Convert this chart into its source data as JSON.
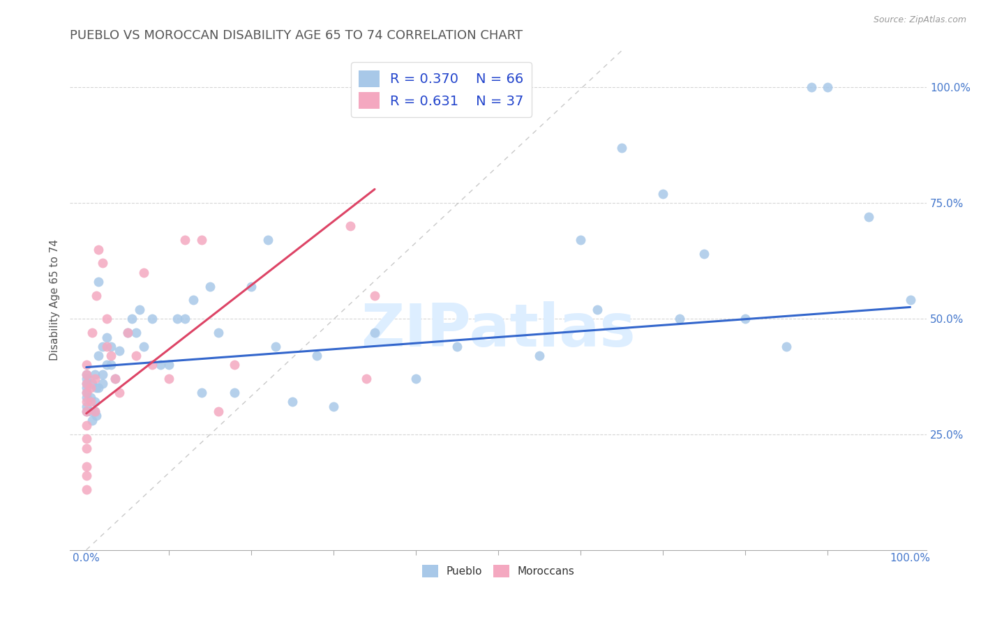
{
  "title": "PUEBLO VS MOROCCAN DISABILITY AGE 65 TO 74 CORRELATION CHART",
  "source_text": "Source: ZipAtlas.com",
  "ylabel": "Disability Age 65 to 74",
  "xlim": [
    -0.02,
    1.02
  ],
  "ylim": [
    0.0,
    1.08
  ],
  "x_tick_minor_positions": [
    0.1,
    0.2,
    0.3,
    0.4,
    0.5,
    0.6,
    0.7,
    0.8,
    0.9
  ],
  "x_tick_major_positions": [
    0.0,
    1.0
  ],
  "x_tick_major_labels": [
    "0.0%",
    "100.0%"
  ],
  "y_tick_positions": [
    0.25,
    0.5,
    0.75,
    1.0
  ],
  "y_tick_labels": [
    "25.0%",
    "50.0%",
    "75.0%",
    "100.0%"
  ],
  "pueblo_color": "#a8c8e8",
  "moroccan_color": "#f4a8c0",
  "pueblo_line_color": "#3366cc",
  "moroccan_line_color": "#dd4466",
  "pueblo_R": 0.37,
  "pueblo_N": 66,
  "moroccan_R": 0.631,
  "moroccan_N": 37,
  "legend_label1": "Pueblo",
  "legend_label2": "Moroccans",
  "background_color": "#ffffff",
  "grid_color": "#cccccc",
  "title_color": "#555555",
  "title_fontsize": 13,
  "axis_label_color": "#555555",
  "watermark": "ZIPatlas",
  "pueblo_line_x0": 0.0,
  "pueblo_line_x1": 1.0,
  "pueblo_line_y0": 0.395,
  "pueblo_line_y1": 0.525,
  "moroccan_line_x0": 0.0,
  "moroccan_line_x1": 0.35,
  "moroccan_line_y0": 0.295,
  "moroccan_line_y1": 0.78,
  "diag_line_x0": 0.0,
  "diag_line_x1": 0.65,
  "diag_line_y0": 0.0,
  "diag_line_y1": 1.08,
  "pueblo_x": [
    0.0,
    0.0,
    0.0,
    0.0,
    0.0,
    0.0,
    0.0,
    0.0,
    0.005,
    0.005,
    0.007,
    0.007,
    0.01,
    0.01,
    0.01,
    0.012,
    0.012,
    0.015,
    0.015,
    0.015,
    0.02,
    0.02,
    0.02,
    0.025,
    0.025,
    0.03,
    0.03,
    0.035,
    0.04,
    0.05,
    0.055,
    0.06,
    0.065,
    0.07,
    0.08,
    0.09,
    0.1,
    0.11,
    0.12,
    0.13,
    0.14,
    0.15,
    0.16,
    0.18,
    0.2,
    0.22,
    0.23,
    0.25,
    0.28,
    0.3,
    0.35,
    0.4,
    0.45,
    0.55,
    0.6,
    0.62,
    0.65,
    0.7,
    0.72,
    0.75,
    0.8,
    0.85,
    0.88,
    0.9,
    0.95,
    1.0
  ],
  "pueblo_y": [
    0.33,
    0.35,
    0.31,
    0.37,
    0.3,
    0.34,
    0.36,
    0.38,
    0.33,
    0.3,
    0.36,
    0.28,
    0.3,
    0.38,
    0.32,
    0.35,
    0.29,
    0.35,
    0.58,
    0.42,
    0.38,
    0.36,
    0.44,
    0.4,
    0.46,
    0.4,
    0.44,
    0.37,
    0.43,
    0.47,
    0.5,
    0.47,
    0.52,
    0.44,
    0.5,
    0.4,
    0.4,
    0.5,
    0.5,
    0.54,
    0.34,
    0.57,
    0.47,
    0.34,
    0.57,
    0.67,
    0.44,
    0.32,
    0.42,
    0.31,
    0.47,
    0.37,
    0.44,
    0.42,
    0.67,
    0.52,
    0.87,
    0.77,
    0.5,
    0.64,
    0.5,
    0.44,
    1.0,
    1.0,
    0.72,
    0.54
  ],
  "moroccan_x": [
    0.0,
    0.0,
    0.0,
    0.0,
    0.0,
    0.0,
    0.0,
    0.0,
    0.0,
    0.0,
    0.0,
    0.0,
    0.005,
    0.005,
    0.007,
    0.01,
    0.01,
    0.012,
    0.015,
    0.02,
    0.025,
    0.025,
    0.03,
    0.035,
    0.04,
    0.05,
    0.06,
    0.07,
    0.08,
    0.1,
    0.12,
    0.14,
    0.16,
    0.18,
    0.32,
    0.34,
    0.35
  ],
  "moroccan_y": [
    0.3,
    0.32,
    0.34,
    0.36,
    0.38,
    0.4,
    0.24,
    0.27,
    0.22,
    0.16,
    0.18,
    0.13,
    0.32,
    0.35,
    0.47,
    0.37,
    0.3,
    0.55,
    0.65,
    0.62,
    0.44,
    0.5,
    0.42,
    0.37,
    0.34,
    0.47,
    0.42,
    0.6,
    0.4,
    0.37,
    0.67,
    0.67,
    0.3,
    0.4,
    0.7,
    0.37,
    0.55
  ]
}
